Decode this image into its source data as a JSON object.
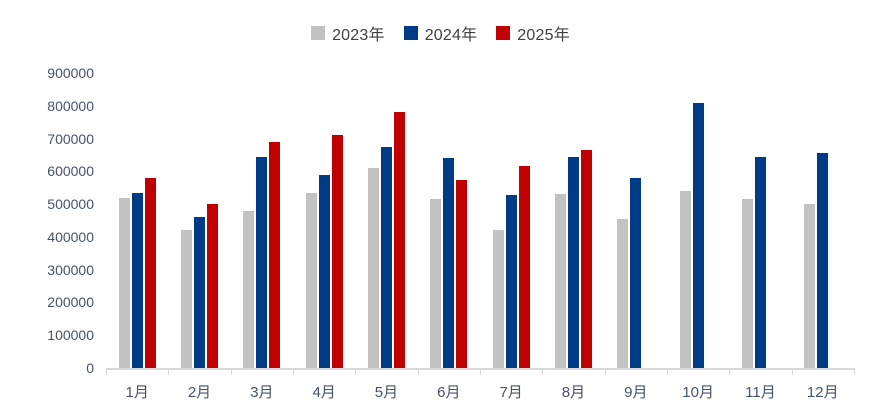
{
  "background_color": "#ffffff",
  "legend": {
    "position": "top-center",
    "items": [
      {
        "label": "2023年",
        "color": "#c2c2c2"
      },
      {
        "label": "2024年",
        "color": "#003b85"
      },
      {
        "label": "2025年",
        "color": "#c00000"
      }
    ]
  },
  "axis_colors": {
    "tick_and_axis_line": "#d9d9d9",
    "label_text": "#44546A"
  },
  "chart_data": {
    "type": "bar",
    "title": "",
    "xlabel": "",
    "ylabel": "",
    "categories": [
      "1月",
      "2月",
      "3月",
      "4月",
      "5月",
      "6月",
      "7月",
      "8月",
      "9月",
      "10月",
      "11月",
      "12月"
    ],
    "series": [
      {
        "name": "2023年",
        "color": "#c2c2c2",
        "values": [
          520000,
          420000,
          480000,
          535000,
          610000,
          515000,
          420000,
          530000,
          455000,
          540000,
          515000,
          500000
        ]
      },
      {
        "name": "2024年",
        "color": "#003b85",
        "values": [
          535000,
          460000,
          645000,
          590000,
          675000,
          640000,
          528000,
          645000,
          580000,
          810000,
          645000,
          655000
        ]
      },
      {
        "name": "2025年",
        "color": "#c00000",
        "values": [
          580000,
          500000,
          690000,
          710000,
          780000,
          575000,
          615000,
          665000,
          null,
          null,
          null,
          null
        ]
      }
    ],
    "ylim": [
      0,
      900000
    ],
    "y_ticks": [
      0,
      100000,
      200000,
      300000,
      400000,
      500000,
      600000,
      700000,
      800000,
      900000
    ],
    "y_tick_labels": [
      "0",
      "100000",
      "200000",
      "300000",
      "400000",
      "500000",
      "600000",
      "700000",
      "800000",
      "900000"
    ],
    "grid": false,
    "legend_position": "top"
  }
}
